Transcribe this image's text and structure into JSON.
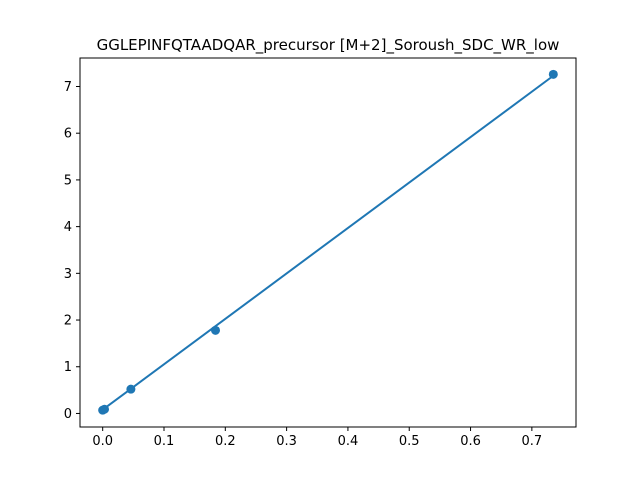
{
  "chart_data": {
    "type": "scatter",
    "title": "GGLEPINFQTAADQAR_precursor [M+2]_Soroush_SDC_WR_low",
    "xlabel": "",
    "ylabel": "",
    "xlim": [
      -0.037,
      0.772
    ],
    "ylim": [
      -0.29,
      7.61
    ],
    "x_ticks": [
      0.0,
      0.1,
      0.2,
      0.3,
      0.4,
      0.5,
      0.6,
      0.7
    ],
    "x_tick_labels": [
      "0.0",
      "0.1",
      "0.2",
      "0.3",
      "0.4",
      "0.5",
      "0.6",
      "0.7"
    ],
    "y_ticks": [
      0,
      1,
      2,
      3,
      4,
      5,
      6,
      7
    ],
    "y_tick_labels": [
      "0",
      "1",
      "2",
      "3",
      "4",
      "5",
      "6",
      "7"
    ],
    "grid": false,
    "series": [
      {
        "kind": "points",
        "color": "#1f77b4",
        "x": [
          0.0,
          0.003,
          0.046,
          0.184,
          0.735
        ],
        "y": [
          0.07,
          0.09,
          0.52,
          1.78,
          7.26
        ]
      },
      {
        "kind": "fit-line",
        "color": "#1f77b4",
        "x": [
          0.0,
          0.735
        ],
        "y": [
          0.08,
          7.23
        ]
      }
    ]
  }
}
